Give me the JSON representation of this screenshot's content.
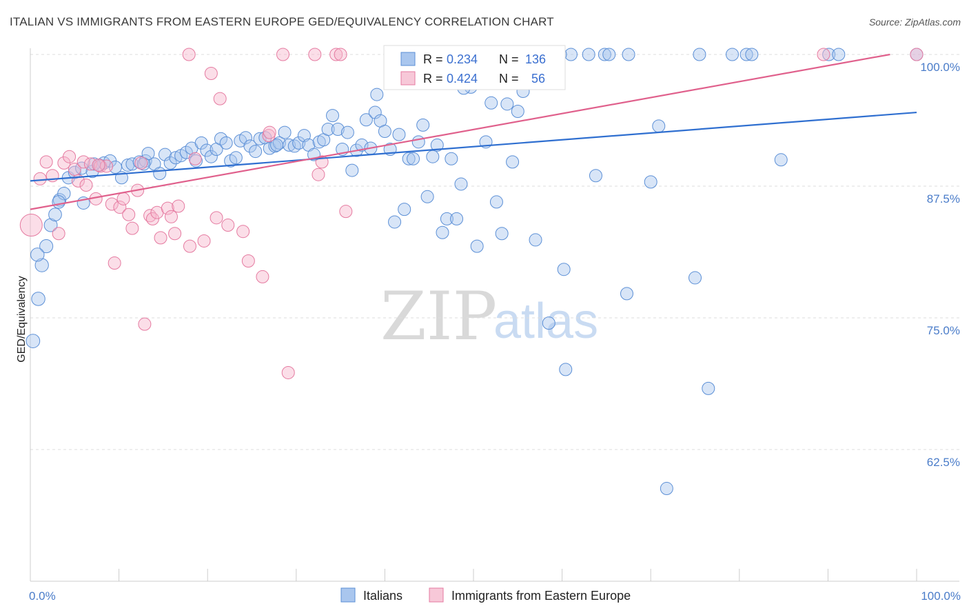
{
  "title": "ITALIAN VS IMMIGRANTS FROM EASTERN EUROPE GED/EQUIVALENCY CORRELATION CHART",
  "source": "Source: ZipAtlas.com",
  "watermark": {
    "zip": "ZIP",
    "atlas": "atlas"
  },
  "legend": {
    "r_label": "R =",
    "n_label": "N =",
    "rows": [
      {
        "r": "0.234",
        "n": "136"
      },
      {
        "r": "0.424",
        "n": "56"
      }
    ]
  },
  "chart_data": {
    "type": "scatter",
    "title": "ITALIAN VS IMMIGRANTS FROM EASTERN EUROPE GED/EQUIVALENCY CORRELATION CHART",
    "xlabel": "",
    "ylabel": "GED/Equivalency",
    "xlim": [
      0,
      100
    ],
    "ylim": [
      51.5,
      101.5
    ],
    "x_tick_labels": [
      "0.0%",
      "100.0%"
    ],
    "y_ticks": [
      62.5,
      75.0,
      87.5,
      100.0
    ],
    "y_tick_labels": [
      "62.5%",
      "75.0%",
      "87.5%",
      "100.0%"
    ],
    "grid": true,
    "series": [
      {
        "name": "Italians",
        "color": "#5b8fd6",
        "fill": "#a9c6ee",
        "r": 0.234,
        "n": 136,
        "trend": [
          [
            0,
            88.0
          ],
          [
            100,
            94.5
          ]
        ],
        "points": [
          [
            0.3,
            72.8
          ],
          [
            0.9,
            76.8
          ],
          [
            1.3,
            80.0
          ],
          [
            1.8,
            81.8
          ],
          [
            2.3,
            83.8
          ],
          [
            2.8,
            84.8
          ],
          [
            3.3,
            86.2
          ],
          [
            3.8,
            86.8
          ],
          [
            4.3,
            88.3
          ],
          [
            5.0,
            88.8
          ],
          [
            5.8,
            89.2
          ],
          [
            6.0,
            85.9
          ],
          [
            7.0,
            88.9
          ],
          [
            7.8,
            89.5
          ],
          [
            8.3,
            89.7
          ],
          [
            9.0,
            89.9
          ],
          [
            9.6,
            89.3
          ],
          [
            10.3,
            88.3
          ],
          [
            11.0,
            89.5
          ],
          [
            11.5,
            89.6
          ],
          [
            12.3,
            89.8
          ],
          [
            13.0,
            89.9
          ],
          [
            13.3,
            90.6
          ],
          [
            14.0,
            89.6
          ],
          [
            14.6,
            88.7
          ],
          [
            15.2,
            90.5
          ],
          [
            15.8,
            89.7
          ],
          [
            16.4,
            90.2
          ],
          [
            17.0,
            90.4
          ],
          [
            17.6,
            90.7
          ],
          [
            18.2,
            91.1
          ],
          [
            18.7,
            89.9
          ],
          [
            19.3,
            91.6
          ],
          [
            19.9,
            90.9
          ],
          [
            20.4,
            90.3
          ],
          [
            21.0,
            91.0
          ],
          [
            21.5,
            92.0
          ],
          [
            22.1,
            91.6
          ],
          [
            22.6,
            89.9
          ],
          [
            23.2,
            90.2
          ],
          [
            23.7,
            91.8
          ],
          [
            24.3,
            92.1
          ],
          [
            24.8,
            91.3
          ],
          [
            25.4,
            90.8
          ],
          [
            25.9,
            92.0
          ],
          [
            26.5,
            92.1
          ],
          [
            27.0,
            91.1
          ],
          [
            27.6,
            91.3
          ],
          [
            28.1,
            91.6
          ],
          [
            28.7,
            92.6
          ],
          [
            29.2,
            91.4
          ],
          [
            29.8,
            91.3
          ],
          [
            30.3,
            91.6
          ],
          [
            30.9,
            92.3
          ],
          [
            31.4,
            91.4
          ],
          [
            32.0,
            90.5
          ],
          [
            32.6,
            91.7
          ],
          [
            33.1,
            91.9
          ],
          [
            33.6,
            92.9
          ],
          [
            34.1,
            94.2
          ],
          [
            34.7,
            92.9
          ],
          [
            35.2,
            91.0
          ],
          [
            35.8,
            92.6
          ],
          [
            36.3,
            89.0
          ],
          [
            36.8,
            90.9
          ],
          [
            37.4,
            91.4
          ],
          [
            37.9,
            93.8
          ],
          [
            38.4,
            91.1
          ],
          [
            38.9,
            94.5
          ],
          [
            39.5,
            93.7
          ],
          [
            40.0,
            92.7
          ],
          [
            40.6,
            91.0
          ],
          [
            41.1,
            84.1
          ],
          [
            41.6,
            92.4
          ],
          [
            42.2,
            85.3
          ],
          [
            42.7,
            90.1
          ],
          [
            43.2,
            90.1
          ],
          [
            43.8,
            91.7
          ],
          [
            44.3,
            93.3
          ],
          [
            44.8,
            86.5
          ],
          [
            45.4,
            90.3
          ],
          [
            45.9,
            91.4
          ],
          [
            46.5,
            83.1
          ],
          [
            47.0,
            84.4
          ],
          [
            47.5,
            90.1
          ],
          [
            48.1,
            84.4
          ],
          [
            48.6,
            87.7
          ],
          [
            49.2,
            98.3
          ],
          [
            49.7,
            96.9
          ],
          [
            50.4,
            81.8
          ],
          [
            50.9,
            99.9
          ],
          [
            51.4,
            91.7
          ],
          [
            52.0,
            95.4
          ],
          [
            52.6,
            86.0
          ],
          [
            53.2,
            83.0
          ],
          [
            53.8,
            95.3
          ],
          [
            54.4,
            89.8
          ],
          [
            55.0,
            94.6
          ],
          [
            55.6,
            96.5
          ],
          [
            56.2,
            97.6
          ],
          [
            57.0,
            82.4
          ],
          [
            57.8,
            100.0
          ],
          [
            58.5,
            74.5
          ],
          [
            60.2,
            79.6
          ],
          [
            61.0,
            100.0
          ],
          [
            63.0,
            100.0
          ],
          [
            63.8,
            88.5
          ],
          [
            64.8,
            100.0
          ],
          [
            65.3,
            100.0
          ],
          [
            67.3,
            77.3
          ],
          [
            67.5,
            100.0
          ],
          [
            70.0,
            87.9
          ],
          [
            70.9,
            93.2
          ],
          [
            71.8,
            58.8
          ],
          [
            75.0,
            78.8
          ],
          [
            75.5,
            100.0
          ],
          [
            76.5,
            68.3
          ],
          [
            79.2,
            100.0
          ],
          [
            80.8,
            100.0
          ],
          [
            81.4,
            100.0
          ],
          [
            84.7,
            90.0
          ],
          [
            90.1,
            100.0
          ],
          [
            91.2,
            100.0
          ],
          [
            100.0,
            100.0
          ],
          [
            59.0,
            98.6
          ],
          [
            59.8,
            100.0
          ],
          [
            60.4,
            70.1
          ],
          [
            56.8,
            100.0
          ],
          [
            58.3,
            100.0
          ],
          [
            48.9,
            96.8
          ],
          [
            39.1,
            96.2
          ],
          [
            12.8,
            89.6
          ],
          [
            7.2,
            89.6
          ],
          [
            3.2,
            86.0
          ],
          [
            0.8,
            81.0
          ],
          [
            27.8,
            91.4
          ]
        ]
      },
      {
        "name": "Immigrants from Eastern Europe",
        "color": "#e57aa0",
        "fill": "#f7b6cb",
        "r": 0.424,
        "n": 56,
        "trend": [
          [
            0,
            85.3
          ],
          [
            97,
            100.0
          ]
        ],
        "points": [
          [
            0.1,
            83.8
          ],
          [
            1.1,
            88.2
          ],
          [
            1.8,
            89.8
          ],
          [
            2.5,
            88.5
          ],
          [
            3.2,
            83.0
          ],
          [
            3.8,
            89.7
          ],
          [
            4.4,
            90.3
          ],
          [
            5.0,
            89.1
          ],
          [
            5.4,
            88.0
          ],
          [
            6.0,
            89.8
          ],
          [
            6.3,
            87.6
          ],
          [
            6.8,
            89.6
          ],
          [
            7.4,
            86.3
          ],
          [
            7.9,
            89.4
          ],
          [
            8.6,
            89.4
          ],
          [
            9.2,
            85.8
          ],
          [
            9.5,
            80.2
          ],
          [
            10.1,
            85.5
          ],
          [
            10.5,
            86.3
          ],
          [
            11.1,
            84.8
          ],
          [
            11.5,
            83.5
          ],
          [
            12.1,
            87.1
          ],
          [
            12.5,
            89.7
          ],
          [
            12.9,
            74.4
          ],
          [
            13.5,
            84.7
          ],
          [
            13.8,
            84.4
          ],
          [
            14.3,
            85.0
          ],
          [
            14.7,
            82.6
          ],
          [
            15.5,
            85.4
          ],
          [
            15.9,
            84.6
          ],
          [
            16.3,
            83.0
          ],
          [
            16.7,
            85.6
          ],
          [
            18.0,
            81.8
          ],
          [
            18.6,
            90.1
          ],
          [
            19.6,
            82.3
          ],
          [
            20.4,
            98.2
          ],
          [
            21.0,
            84.5
          ],
          [
            21.4,
            95.8
          ],
          [
            22.3,
            83.8
          ],
          [
            24.0,
            83.2
          ],
          [
            24.6,
            80.4
          ],
          [
            26.2,
            78.9
          ],
          [
            26.9,
            92.3
          ],
          [
            27.0,
            92.6
          ],
          [
            28.5,
            100.0
          ],
          [
            29.1,
            69.8
          ],
          [
            32.1,
            100.0
          ],
          [
            32.5,
            88.6
          ],
          [
            32.9,
            89.8
          ],
          [
            34.5,
            100.0
          ],
          [
            35.0,
            100.0
          ],
          [
            35.6,
            85.1
          ],
          [
            89.5,
            100.0
          ],
          [
            100.0,
            100.0
          ],
          [
            17.9,
            100.0
          ],
          [
            7.7,
            89.5
          ]
        ]
      }
    ]
  }
}
